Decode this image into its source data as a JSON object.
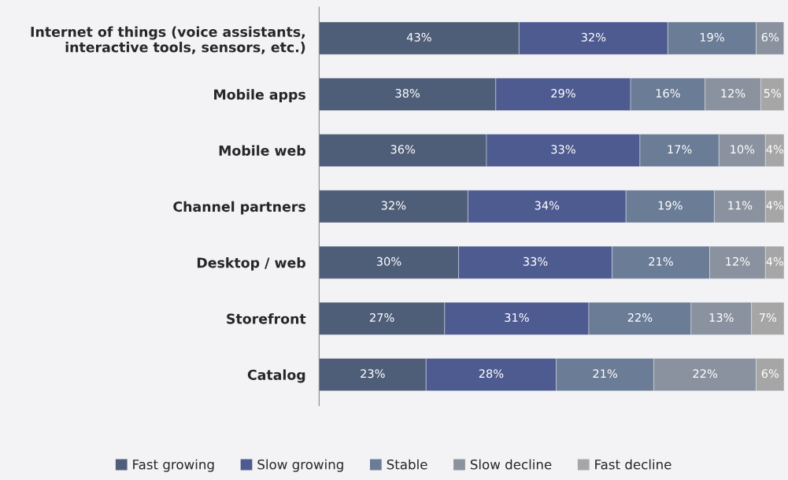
{
  "chart_data": {
    "type": "bar",
    "orientation": "horizontal",
    "stacked": true,
    "legend": "bottom",
    "categories": [
      "Internet of things (voice assistants,\ninteractive tools, sensors, etc.)",
      "Mobile apps",
      "Mobile web",
      "Channel partners",
      "Desktop / web",
      "Storefront",
      "Catalog"
    ],
    "series": [
      {
        "name": "Fast growing",
        "color": "#4f5e78",
        "values": [
          43,
          38,
          36,
          32,
          30,
          27,
          23
        ],
        "value_labels": [
          "43%",
          "38%",
          "36%",
          "32%",
          "30%",
          "27%",
          "23%"
        ]
      },
      {
        "name": "Slow growing",
        "color": "#4e5b90",
        "values": [
          32,
          29,
          33,
          34,
          33,
          31,
          28
        ],
        "value_labels": [
          "32%",
          "29%",
          "33%",
          "34%",
          "33%",
          "31%",
          "28%"
        ]
      },
      {
        "name": "Stable",
        "color": "#6a7c96",
        "values": [
          19,
          16,
          17,
          19,
          21,
          22,
          21
        ],
        "value_labels": [
          "19%",
          "16%",
          "17%",
          "19%",
          "21%",
          "22%",
          "21%"
        ]
      },
      {
        "name": "Slow decline",
        "color": "#8a929f",
        "values": [
          6,
          12,
          10,
          11,
          12,
          13,
          22
        ],
        "value_labels": [
          "6%",
          "12%",
          "10%",
          "11%",
          "12%",
          "13%",
          "22%"
        ]
      },
      {
        "name": "Fast decline",
        "color": "#a6a6a6",
        "values": [
          null,
          5,
          4,
          4,
          4,
          7,
          6
        ],
        "value_labels": [
          null,
          "5%",
          "4%",
          "4%",
          "4%",
          "7%",
          "6%"
        ]
      }
    ]
  }
}
